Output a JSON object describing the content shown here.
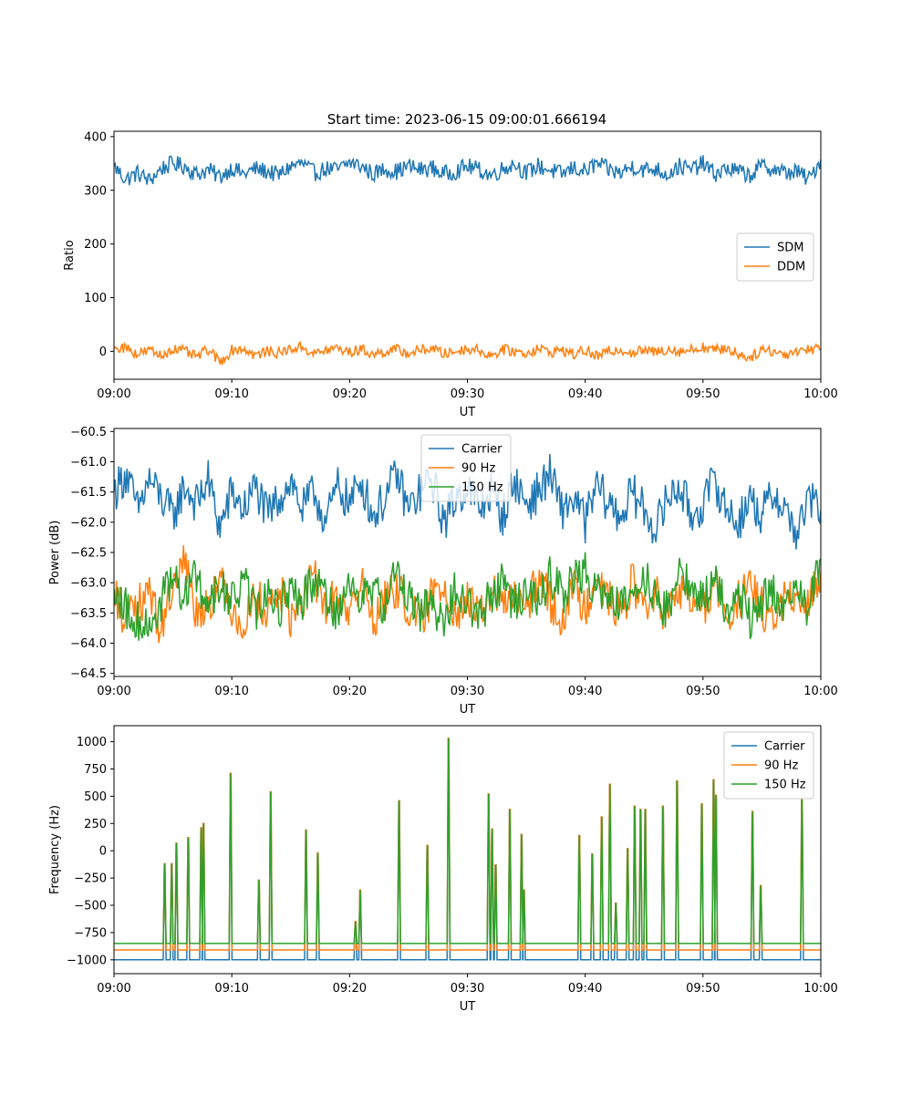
{
  "figure": {
    "title": "Start time: 2023-06-15 09:00:01.666194"
  },
  "chart_data": [
    {
      "type": "line",
      "xlabel": "UT",
      "ylabel": "Ratio",
      "xlim": [
        "09:00",
        "10:00"
      ],
      "ylim": [
        -52,
        410
      ],
      "xticks": [
        "09:00",
        "09:10",
        "09:20",
        "09:30",
        "09:40",
        "09:50",
        "10:00"
      ],
      "yticks": [
        0,
        100,
        200,
        300,
        400
      ],
      "ytick_labels": [
        "0",
        "100",
        "200",
        "300",
        "400"
      ],
      "legend_position": "center-right",
      "series": [
        {
          "name": "SDM",
          "color": "#1f77b4",
          "x_minutes": [
            0,
            1,
            2,
            3,
            4,
            5,
            6,
            7,
            8,
            9,
            10,
            11,
            12,
            13,
            14,
            15,
            16,
            17,
            18,
            19,
            20,
            21,
            22,
            23,
            24,
            25,
            26,
            27,
            28,
            29,
            30,
            31,
            32,
            33,
            34,
            35,
            36,
            37,
            38,
            39,
            40,
            41,
            42,
            43,
            44,
            45,
            46,
            47,
            48,
            49,
            50,
            51,
            52,
            53,
            54,
            55,
            56,
            57,
            58,
            59,
            60
          ],
          "values": [
            345,
            320,
            332,
            318,
            340,
            350,
            345,
            330,
            338,
            325,
            342,
            330,
            340,
            335,
            328,
            345,
            350,
            332,
            340,
            338,
            352,
            345,
            330,
            340,
            335,
            345,
            338,
            342,
            330,
            336,
            345,
            338,
            328,
            340,
            350,
            332,
            345,
            338,
            330,
            342,
            335,
            350,
            338,
            332,
            345,
            338,
            340,
            330,
            345,
            338,
            350,
            330,
            340,
            335,
            328,
            345,
            340,
            332,
            335,
            320,
            358
          ]
        },
        {
          "name": "DDM",
          "color": "#ff7f0e",
          "x_minutes": [
            0,
            1,
            2,
            3,
            4,
            5,
            6,
            7,
            8,
            9,
            10,
            11,
            12,
            13,
            14,
            15,
            16,
            17,
            18,
            19,
            20,
            21,
            22,
            23,
            24,
            25,
            26,
            27,
            28,
            29,
            30,
            31,
            32,
            33,
            34,
            35,
            36,
            37,
            38,
            39,
            40,
            41,
            42,
            43,
            44,
            45,
            46,
            47,
            48,
            49,
            50,
            51,
            52,
            53,
            54,
            55,
            56,
            57,
            58,
            59,
            60
          ],
          "values": [
            5,
            8,
            -5,
            2,
            -8,
            5,
            0,
            -10,
            3,
            -20,
            2,
            5,
            -8,
            0,
            -3,
            5,
            8,
            -5,
            2,
            6,
            -2,
            4,
            -6,
            0,
            3,
            -4,
            2,
            6,
            -5,
            0,
            5,
            2,
            -8,
            3,
            0,
            -4,
            6,
            -2,
            3,
            -6,
            2,
            -10,
            0,
            4,
            -3,
            2,
            -2,
            5,
            0,
            3,
            8,
            2,
            6,
            -5,
            -12,
            4,
            0,
            -6,
            2,
            4,
            5
          ]
        }
      ]
    },
    {
      "type": "line",
      "xlabel": "UT",
      "ylabel": "Power (dB)",
      "xlim": [
        "09:00",
        "10:00"
      ],
      "ylim": [
        -64.55,
        -60.45
      ],
      "xticks": [
        "09:00",
        "09:10",
        "09:20",
        "09:30",
        "09:40",
        "09:50",
        "10:00"
      ],
      "yticks": [
        -60.5,
        -61,
        -61.5,
        -62,
        -62.5,
        -63,
        -63.5,
        -64,
        -64.5
      ],
      "ytick_labels": [
        "−60.5",
        "−61.0",
        "−61.5",
        "−62.0",
        "−62.5",
        "−63.0",
        "−63.5",
        "−64.0",
        "−64.5"
      ],
      "legend_position": "upper-center",
      "series": [
        {
          "name": "Carrier",
          "color": "#1f77b4",
          "x_minutes": [
            0,
            1,
            2,
            3,
            4,
            5,
            6,
            7,
            8,
            9,
            10,
            11,
            12,
            13,
            14,
            15,
            16,
            17,
            18,
            19,
            20,
            21,
            22,
            23,
            24,
            25,
            26,
            27,
            28,
            29,
            30,
            31,
            32,
            33,
            34,
            35,
            36,
            37,
            38,
            39,
            40,
            41,
            42,
            43,
            44,
            45,
            46,
            47,
            48,
            49,
            50,
            51,
            52,
            53,
            54,
            55,
            56,
            57,
            58,
            59,
            60
          ],
          "values": [
            -61.5,
            -61.2,
            -61.8,
            -61.3,
            -61.6,
            -61.9,
            -61.4,
            -61.7,
            -61.3,
            -62.1,
            -61.5,
            -61.8,
            -61.4,
            -61.9,
            -61.6,
            -61.3,
            -61.8,
            -61.5,
            -62.0,
            -61.4,
            -61.7,
            -61.3,
            -61.9,
            -61.6,
            -61.2,
            -61.8,
            -61.5,
            -61.3,
            -62.0,
            -61.6,
            -61.4,
            -61.8,
            -61.5,
            -61.9,
            -61.3,
            -61.7,
            -61.5,
            -61.2,
            -61.8,
            -61.6,
            -62.0,
            -61.4,
            -61.7,
            -61.9,
            -61.5,
            -61.8,
            -62.1,
            -61.6,
            -61.4,
            -61.9,
            -61.7,
            -61.3,
            -61.8,
            -62.0,
            -61.6,
            -61.9,
            -61.5,
            -61.8,
            -62.2,
            -61.6,
            -61.8
          ]
        },
        {
          "name": "90 Hz",
          "color": "#ff7f0e",
          "x_minutes": [
            0,
            1,
            2,
            3,
            4,
            5,
            6,
            7,
            8,
            9,
            10,
            11,
            12,
            13,
            14,
            15,
            16,
            17,
            18,
            19,
            20,
            21,
            22,
            23,
            24,
            25,
            26,
            27,
            28,
            29,
            30,
            31,
            32,
            33,
            34,
            35,
            36,
            37,
            38,
            39,
            40,
            41,
            42,
            43,
            44,
            45,
            46,
            47,
            48,
            49,
            50,
            51,
            52,
            53,
            54,
            55,
            56,
            57,
            58,
            59,
            60
          ],
          "values": [
            -63.2,
            -63.6,
            -63.4,
            -63.1,
            -63.8,
            -63.0,
            -62.6,
            -63.5,
            -63.3,
            -63.0,
            -63.4,
            -63.7,
            -63.2,
            -63.5,
            -63.1,
            -63.6,
            -63.3,
            -62.9,
            -63.4,
            -63.2,
            -63.5,
            -63.0,
            -63.6,
            -63.3,
            -63.1,
            -63.4,
            -63.7,
            -63.2,
            -63.0,
            -63.5,
            -63.3,
            -63.6,
            -63.1,
            -63.4,
            -63.2,
            -63.5,
            -62.9,
            -63.3,
            -63.6,
            -63.1,
            -63.4,
            -62.8,
            -63.3,
            -63.5,
            -63.0,
            -63.4,
            -63.2,
            -63.6,
            -63.1,
            -63.3,
            -63.5,
            -63.0,
            -63.6,
            -63.3,
            -63.1,
            -63.4,
            -63.7,
            -63.2,
            -63.5,
            -63.3,
            -62.8
          ]
        },
        {
          "name": "150 Hz",
          "color": "#2ca02c",
          "x_minutes": [
            0,
            1,
            2,
            3,
            4,
            5,
            6,
            7,
            8,
            9,
            10,
            11,
            12,
            13,
            14,
            15,
            16,
            17,
            18,
            19,
            20,
            21,
            22,
            23,
            24,
            25,
            26,
            27,
            28,
            29,
            30,
            31,
            32,
            33,
            34,
            35,
            36,
            37,
            38,
            39,
            40,
            41,
            42,
            43,
            44,
            45,
            46,
            47,
            48,
            49,
            50,
            51,
            52,
            53,
            54,
            55,
            56,
            57,
            58,
            59,
            60
          ],
          "values": [
            -63.1,
            -63.4,
            -63.6,
            -63.8,
            -63.3,
            -63.0,
            -63.2,
            -62.9,
            -63.4,
            -63.1,
            -63.3,
            -63.0,
            -63.5,
            -63.2,
            -63.4,
            -63.1,
            -63.3,
            -62.9,
            -63.2,
            -63.5,
            -63.0,
            -63.3,
            -63.1,
            -63.4,
            -62.8,
            -63.2,
            -63.5,
            -63.3,
            -63.7,
            -63.1,
            -63.3,
            -63.6,
            -63.2,
            -63.0,
            -63.4,
            -63.1,
            -63.3,
            -62.9,
            -63.2,
            -63.0,
            -62.8,
            -63.1,
            -63.3,
            -63.4,
            -63.0,
            -62.9,
            -63.2,
            -63.5,
            -62.8,
            -63.1,
            -63.3,
            -63.0,
            -63.4,
            -63.2,
            -63.6,
            -63.3,
            -63.1,
            -63.5,
            -63.2,
            -63.4,
            -62.6
          ]
        }
      ]
    },
    {
      "type": "line",
      "xlabel": "UT",
      "ylabel": "Frequency (Hz)",
      "xlim": [
        "09:00",
        "10:00"
      ],
      "ylim": [
        -1127,
        1147
      ],
      "xticks": [
        "09:00",
        "09:10",
        "09:20",
        "09:30",
        "09:40",
        "09:50",
        "10:00"
      ],
      "yticks": [
        1000,
        750,
        500,
        250,
        0,
        -250,
        -500,
        -750,
        -1000
      ],
      "ytick_labels": [
        "1000",
        "750",
        "500",
        "250",
        "0",
        "−250",
        "−500",
        "−750",
        "−1000"
      ],
      "legend_position": "upper-right",
      "series": [
        {
          "name": "Carrier",
          "color": "#1f77b4",
          "baseline": -1000
        },
        {
          "name": "90 Hz",
          "color": "#ff7f0e",
          "baseline": -910
        },
        {
          "name": "150 Hz",
          "color": "#2ca02c",
          "baseline": -850
        }
      ],
      "spikes_minutes": [
        4.3,
        4.9,
        5.3,
        6.3,
        7.4,
        7.6,
        9.9,
        12.3,
        13.3,
        16.3,
        17.3,
        20.5,
        20.9,
        24.2,
        26.6,
        28.4,
        31.8,
        32.1,
        32.4,
        33.6,
        34.6,
        34.8,
        39.5,
        40.6,
        41.4,
        42.1,
        42.6,
        43.6,
        44.2,
        44.7,
        45.1,
        46.6,
        47.8,
        49.9,
        50.9,
        51.1,
        54.2,
        54.9,
        58.4
      ],
      "spikes_values": [
        -120,
        -120,
        70,
        120,
        210,
        250,
        710,
        -270,
        540,
        190,
        -20,
        -650,
        -360,
        460,
        50,
        1030,
        520,
        200,
        -130,
        380,
        150,
        -360,
        140,
        -30,
        310,
        610,
        -480,
        20,
        410,
        380,
        380,
        410,
        640,
        430,
        650,
        510,
        360,
        -320,
        470
      ]
    }
  ]
}
